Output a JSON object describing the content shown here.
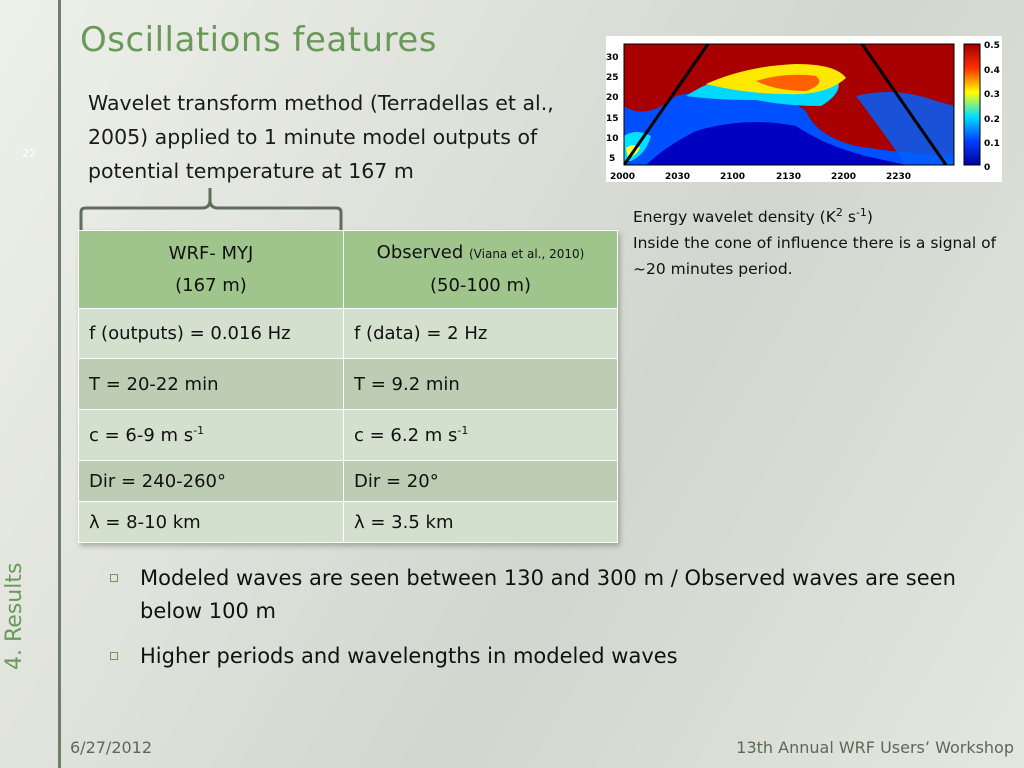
{
  "slide": {
    "number": "22",
    "section": "4. Results",
    "title": "Oscillations features",
    "intro": "Wavelet transform method (Terradellas et al., 2005) applied to 1 minute model outputs of potential temperature at 167 m"
  },
  "table": {
    "col1_header_line1": "WRF- MYJ",
    "col1_header_line2": "(167 m)",
    "col2_header_line1": "Observed",
    "col2_header_cite": "(Viana et al., 2010)",
    "col2_header_line2": "(50-100 m)",
    "rows": [
      {
        "c1": "f (outputs) = 0.016 Hz",
        "c2": "f (data) = 2 Hz"
      },
      {
        "c1": "T = 20-22 min",
        "c2": "T = 9.2 min"
      },
      {
        "c1_pre": "c = 6-9 m s",
        "c1_sup": "-1",
        "c2_pre": "c = 6.2 m s",
        "c2_sup": "-1"
      },
      {
        "c1": "Dir = 240-260°",
        "c2": "Dir = 20°"
      },
      {
        "c1": "λ = 8-10 km",
        "c2": "λ = 3.5 km"
      }
    ]
  },
  "chart_data": {
    "type": "heatmap",
    "x_ticks": [
      "2000",
      "2030",
      "2100",
      "2130",
      "2200",
      "2230"
    ],
    "y_ticks": [
      "5",
      "10",
      "15",
      "20",
      "25",
      "30"
    ],
    "colorbar_ticks": [
      "0",
      "0.1",
      "0.2",
      "0.3",
      "0.4",
      "0.5"
    ],
    "colorbar_range": [
      0,
      0.5
    ],
    "background_color": "#a80000",
    "colors": [
      "#0000cc",
      "#0080ff",
      "#00e0ff",
      "#ffff00",
      "#ff4000",
      "#a80000"
    ]
  },
  "caption": {
    "line1_pre": "Energy wavelet density (K",
    "line1_sup1": "2",
    "line1_mid": " s",
    "line1_sup2": "-1",
    "line1_post": ")",
    "line2": "Inside the cone of influence there is a signal of ~20 minutes period."
  },
  "bullets": [
    "Modeled waves are seen between 130 and 300 m / Observed waves are seen below 100 m",
    "Higher periods and wavelengths in modeled waves"
  ],
  "footer": {
    "date": "6/27/2012",
    "event": "13th Annual WRF Users’ Workshop"
  }
}
